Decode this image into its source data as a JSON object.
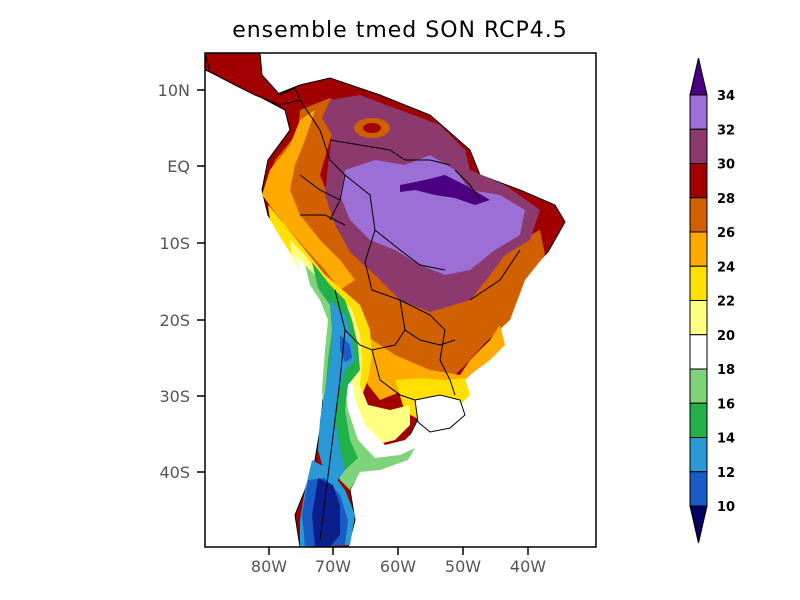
{
  "title": "ensemble tmed SON RCP4.5",
  "map": {
    "lat_ticks": [
      "10N",
      "EQ",
      "10S",
      "20S",
      "30S",
      "40S"
    ],
    "lon_ticks": [
      "80W",
      "70W",
      "60W",
      "50W",
      "40W"
    ]
  },
  "colorbar": {
    "levels": [
      "10",
      "12",
      "14",
      "16",
      "18",
      "20",
      "22",
      "24",
      "26",
      "28",
      "30",
      "32",
      "34"
    ],
    "colors": [
      "#0a1e8c",
      "#1a5cc6",
      "#2a9ad6",
      "#22b04a",
      "#7fd37a",
      "#ffffff",
      "#ffff80",
      "#ffe000",
      "#ffaa00",
      "#d06000",
      "#a00000",
      "#8c3a6e",
      "#9b6fd6",
      "#4b0082"
    ],
    "under_color": "#000060",
    "over_color": "#4b0082"
  }
}
